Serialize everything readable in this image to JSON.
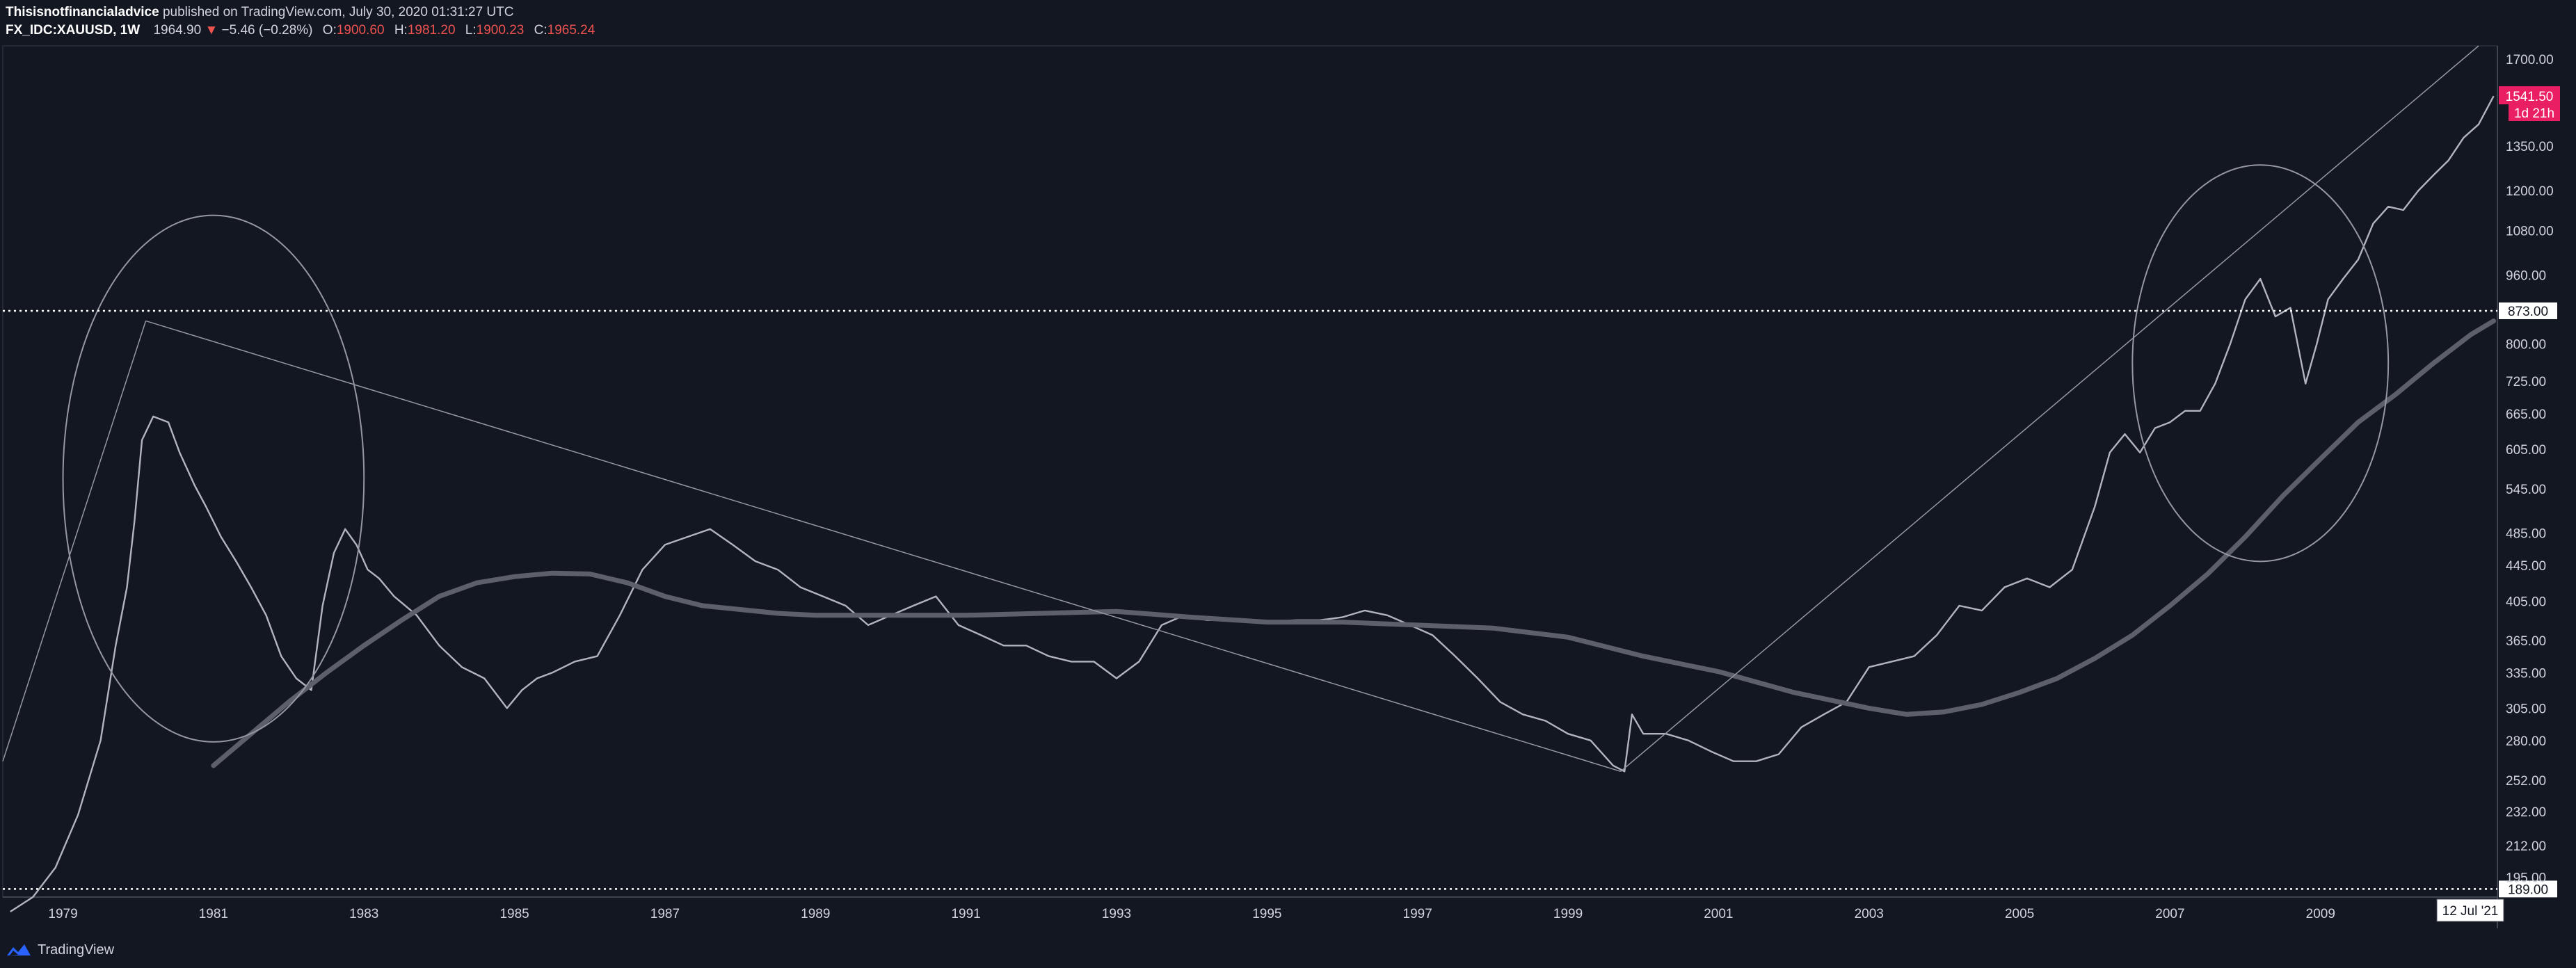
{
  "header": {
    "author": "Thisisnotfinancialadvice",
    "published": "published on TradingView.com, July 30, 2020 01:31:27 UTC",
    "symbol": "FX_IDC:XAUUSD, 1W",
    "last": "1964.90",
    "down_arrow": "▼",
    "change": "−5.46 (−0.28%)",
    "o_label": "O:",
    "o_value": "1900.60",
    "h_label": "H:",
    "h_value": "1981.20",
    "l_label": "L:",
    "l_value": "1900.23",
    "c_label": "C:",
    "c_value": "1965.24"
  },
  "footer": {
    "brand": "TradingView",
    "logo_icon": "tradingview-logo-icon"
  },
  "colors": {
    "background": "#131722",
    "price": "#b2b5be",
    "ma": "#5d606b",
    "drawing": "#9598a1",
    "price_badge": "#e91e63",
    "text": "#d1d4dc"
  },
  "chart_data": {
    "type": "line",
    "symbol": "FX_IDC:XAUUSD",
    "interval": "1W",
    "scale": "log",
    "x_ticks": [
      "1979",
      "1981",
      "1983",
      "1985",
      "1987",
      "1989",
      "1991",
      "1993",
      "1995",
      "1997",
      "1999",
      "2001",
      "2003",
      "2005",
      "2007",
      "2009"
    ],
    "y_ticks": [
      "1700.00",
      "1350.00",
      "1200.00",
      "1080.00",
      "960.00",
      "800.00",
      "725.00",
      "665.00",
      "605.00",
      "545.00",
      "485.00",
      "445.00",
      "405.00",
      "365.00",
      "335.00",
      "305.00",
      "280.00",
      "252.00",
      "232.00",
      "212.00",
      "195.00"
    ],
    "ylim": [
      185,
      1760
    ],
    "xlim": [
      1978.2,
      2011.35
    ],
    "price_label": "1541.50",
    "countdown_label": "1d 21h",
    "horizontal_levels": [
      {
        "value": 873,
        "label": "873.00"
      },
      {
        "value": 189,
        "label": "189.00"
      }
    ],
    "crosshair_date_label": "12 Jul '21",
    "series": [
      {
        "type": "price",
        "x": [
          1978.3,
          1978.6,
          1978.9,
          1979.2,
          1979.5,
          1979.7,
          1979.85,
          1979.95,
          1980.05,
          1980.2,
          1980.4,
          1980.55,
          1980.75,
          1980.9,
          1981.1,
          1981.3,
          1981.5,
          1981.7,
          1981.9,
          1982.1,
          1982.3,
          1982.45,
          1982.6,
          1982.75,
          1982.9,
          1983.05,
          1983.2,
          1983.4,
          1983.7,
          1984.0,
          1984.3,
          1984.6,
          1984.9,
          1985.1,
          1985.3,
          1985.5,
          1985.8,
          1986.1,
          1986.4,
          1986.7,
          1987.0,
          1987.3,
          1987.6,
          1987.9,
          1988.2,
          1988.5,
          1988.8,
          1989.1,
          1989.4,
          1989.7,
          1990.0,
          1990.3,
          1990.6,
          1990.9,
          1991.2,
          1991.5,
          1991.8,
          1992.1,
          1992.4,
          1992.7,
          1993.0,
          1993.3,
          1993.6,
          1993.9,
          1994.2,
          1994.5,
          1994.8,
          1995.1,
          1995.4,
          1995.7,
          1996.0,
          1996.3,
          1996.6,
          1996.9,
          1997.2,
          1997.5,
          1997.8,
          1998.1,
          1998.4,
          1998.7,
          1999.0,
          1999.3,
          1999.6,
          1999.75,
          1999.85,
          2000.0,
          2000.3,
          2000.6,
          2000.9,
          2001.2,
          2001.5,
          2001.8,
          2002.1,
          2002.4,
          2002.7,
          2003.0,
          2003.3,
          2003.6,
          2003.9,
          2004.2,
          2004.5,
          2004.8,
          2005.1,
          2005.4,
          2005.7,
          2006.0,
          2006.2,
          2006.4,
          2006.6,
          2006.8,
          2007.0,
          2007.2,
          2007.4,
          2007.6,
          2007.8,
          2008.0,
          2008.2,
          2008.4,
          2008.6,
          2008.8,
          2008.95,
          2009.1,
          2009.3,
          2009.5,
          2009.7,
          2009.9,
          2010.1,
          2010.3,
          2010.5,
          2010.7,
          2010.9,
          2011.1,
          2011.3
        ],
        "y": [
          178,
          185,
          200,
          230,
          280,
          360,
          420,
          500,
          620,
          660,
          650,
          600,
          550,
          520,
          480,
          450,
          420,
          390,
          350,
          330,
          320,
          400,
          460,
          490,
          470,
          440,
          430,
          410,
          390,
          360,
          340,
          330,
          305,
          320,
          330,
          335,
          345,
          350,
          390,
          440,
          470,
          480,
          490,
          470,
          450,
          440,
          420,
          410,
          400,
          380,
          390,
          400,
          410,
          380,
          370,
          360,
          360,
          350,
          345,
          345,
          330,
          345,
          380,
          390,
          385,
          385,
          385,
          384,
          385,
          385,
          388,
          395,
          390,
          380,
          370,
          350,
          330,
          310,
          300,
          295,
          285,
          280,
          262,
          258,
          300,
          285,
          285,
          280,
          272,
          265,
          265,
          270,
          290,
          300,
          310,
          340,
          345,
          350,
          370,
          400,
          395,
          420,
          430,
          420,
          440,
          520,
          600,
          630,
          600,
          640,
          650,
          670,
          670,
          720,
          800,
          900,
          950,
          860,
          880,
          720,
          800,
          900,
          950,
          1000,
          1100,
          1150,
          1140,
          1200,
          1250,
          1300,
          1380,
          1430,
          1541
        ]
      },
      {
        "type": "moving_average",
        "x": [
          1981.0,
          1981.5,
          1982.0,
          1982.5,
          1983.0,
          1983.5,
          1984.0,
          1984.5,
          1985.0,
          1985.5,
          1986.0,
          1986.5,
          1987.0,
          1987.5,
          1988.0,
          1988.5,
          1989.0,
          1990.0,
          1991.0,
          1992.0,
          1993.0,
          1994.0,
          1995.0,
          1996.0,
          1997.0,
          1998.0,
          1999.0,
          2000.0,
          2001.0,
          2002.0,
          2003.0,
          2003.5,
          2004.0,
          2004.5,
          2005.0,
          2005.5,
          2006.0,
          2006.5,
          2007.0,
          2007.5,
          2008.0,
          2008.5,
          2009.0,
          2009.5,
          2010.0,
          2010.5,
          2011.0,
          2011.3
        ],
        "y": [
          262,
          285,
          310,
          335,
          360,
          385,
          410,
          425,
          432,
          436,
          435,
          425,
          410,
          400,
          396,
          392,
          390,
          390,
          390,
          392,
          394,
          388,
          383,
          383,
          380,
          377,
          368,
          350,
          336,
          318,
          305,
          300,
          302,
          308,
          318,
          330,
          348,
          370,
          400,
          435,
          480,
          535,
          590,
          650,
          700,
          760,
          820,
          850
        ]
      }
    ],
    "drawings": [
      {
        "type": "trendline",
        "from": [
          1978.2,
          265
        ],
        "to": [
          1980.1,
          850
        ]
      },
      {
        "type": "trendline",
        "from": [
          1980.1,
          850
        ],
        "to": [
          1999.7,
          258
        ]
      },
      {
        "type": "trendline",
        "from": [
          1999.7,
          258
        ],
        "to": [
          2011.1,
          1760
        ]
      },
      {
        "type": "ellipse",
        "center": [
          1981.0,
          560
        ],
        "rx_years": 2.0,
        "ry_ratio": 1.75
      },
      {
        "type": "ellipse",
        "center": [
          2008.2,
          760
        ],
        "rx_years": 1.7,
        "ry_ratio": 1.55
      }
    ]
  }
}
